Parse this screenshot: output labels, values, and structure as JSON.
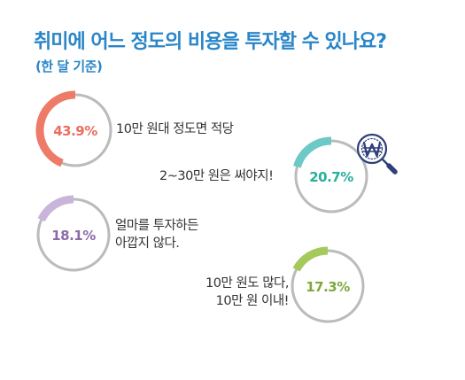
{
  "title": "취미에 어느 정도의 비용을 투자할 수 있나요?",
  "subtitle": "(한 달 기준)",
  "colors": {
    "title": "#2a86c8",
    "ring": "#bbbbbb",
    "slice1": "#ee7a68",
    "slice2": "#6cc9c5",
    "slice3": "#c9b5dc",
    "slice4": "#a5c95a",
    "label1": "#ea6f5e",
    "label2": "#28b09a",
    "label3": "#8c6aa8",
    "label4": "#7fa83c"
  },
  "icon": "won-coin-magnifier-icon",
  "chart_data": {
    "type": "pie",
    "title": "취미에 어느 정도의 비용을 투자할 수 있나요?",
    "subtitle": "(한 달 기준)",
    "slices": [
      {
        "label": "10만 원대 정도면 적당",
        "value": 43.9,
        "display": "43.9%",
        "caption_lines": [
          "10만 원대 정도면 적당"
        ]
      },
      {
        "label": "2~30만 원은 써야지!",
        "value": 20.7,
        "display": "20.7%",
        "caption_lines": [
          "2~30만 원은 써야지!"
        ]
      },
      {
        "label": "얼마를 투자하든 아깝지 않다.",
        "value": 18.1,
        "display": "18.1%",
        "caption_lines": [
          "얼마를 투자하든",
          "아깝지 않다."
        ]
      },
      {
        "label": "10만 원도 많다, 10만 원 이내!",
        "value": 17.3,
        "display": "17.3%",
        "caption_lines": [
          "10만 원도 많다,",
          "10만 원 이내!"
        ]
      }
    ]
  }
}
